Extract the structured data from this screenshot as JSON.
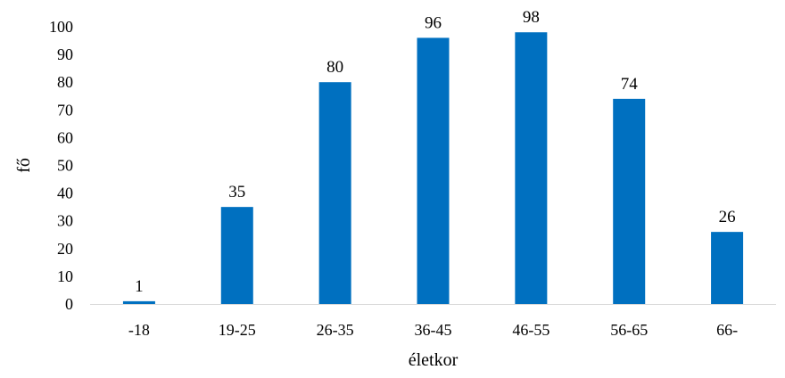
{
  "chart_data": {
    "type": "bar",
    "categories": [
      "-18",
      "19-25",
      "26-35",
      "36-45",
      "46-55",
      "56-65",
      "66-"
    ],
    "values": [
      1,
      35,
      80,
      96,
      98,
      74,
      26
    ],
    "data_labels": [
      "1",
      "35",
      "80",
      "96",
      "98",
      "74",
      "26"
    ],
    "title": "",
    "xlabel": "életkor",
    "ylabel": "fő",
    "ylim": [
      0,
      100
    ],
    "yticks": [
      0,
      10,
      20,
      30,
      40,
      50,
      60,
      70,
      80,
      90,
      100
    ],
    "ytick_labels": [
      "0",
      "10",
      "20",
      "30",
      "40",
      "50",
      "60",
      "70",
      "80",
      "90",
      "100"
    ],
    "grid": false,
    "legend": "none",
    "colors": {
      "bar": "#0070C0",
      "axis": "#D9D9D9",
      "text": "#000000"
    }
  }
}
